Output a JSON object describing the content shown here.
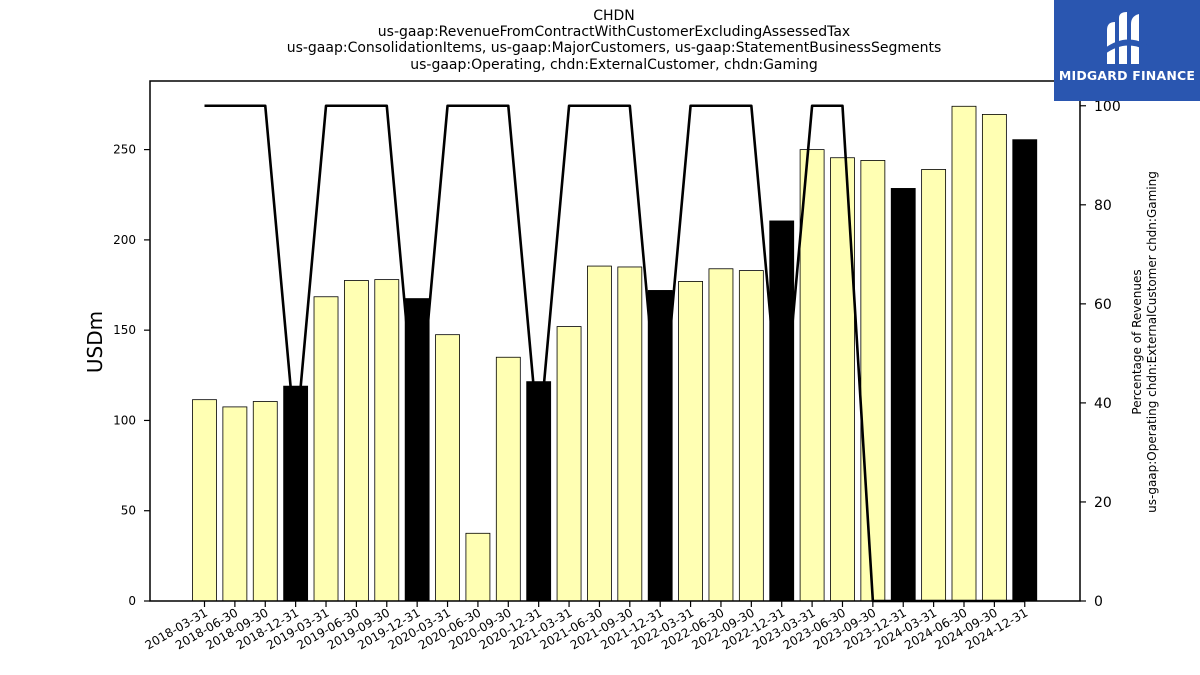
{
  "chart_data": {
    "type": "bar",
    "title_lines": [
      "CHDN",
      "us-gaap:RevenueFromContractWithCustomerExcludingAssessedTax",
      "us-gaap:ConsolidationItems, us-gaap:MajorCustomers, us-gaap:StatementBusinessSegments",
      "us-gaap:Operating, chdn:ExternalCustomer, chdn:Gaming"
    ],
    "categories": [
      "2018-03-31",
      "2018-06-30",
      "2018-09-30",
      "2018-12-31",
      "2019-03-31",
      "2019-06-30",
      "2019-09-30",
      "2019-12-31",
      "2020-03-31",
      "2020-06-30",
      "2020-09-30",
      "2020-12-31",
      "2021-03-31",
      "2021-06-30",
      "2021-09-30",
      "2021-12-31",
      "2022-03-31",
      "2022-06-30",
      "2022-09-30",
      "2022-12-31",
      "2023-03-31",
      "2023-06-30",
      "2023-09-30",
      "2023-12-31",
      "2024-03-31",
      "2024-06-30",
      "2024-09-30",
      "2024-12-31"
    ],
    "series": [
      {
        "axis": "left",
        "type": "bar",
        "values": [
          111.5,
          107.5,
          110.5,
          119,
          168.5,
          177.5,
          178,
          167.5,
          147.5,
          37.5,
          135,
          121.5,
          152,
          185.5,
          185,
          172,
          177,
          184,
          183,
          210.5,
          250,
          245.5,
          244,
          228.5,
          239,
          274,
          269.5,
          255.5
        ],
        "bar_colors": [
          "#ffffb3",
          "#ffffb3",
          "#ffffb3",
          "#000000",
          "#ffffb3",
          "#ffffb3",
          "#ffffb3",
          "#000000",
          "#ffffb3",
          "#ffffb3",
          "#ffffb3",
          "#000000",
          "#ffffb3",
          "#ffffb3",
          "#ffffb3",
          "#000000",
          "#ffffb3",
          "#ffffb3",
          "#ffffb3",
          "#000000",
          "#ffffb3",
          "#ffffb3",
          "#ffffb3",
          "#000000",
          "#ffffb3",
          "#ffffb3",
          "#ffffb3",
          "#000000"
        ]
      },
      {
        "axis": "right",
        "type": "line",
        "color": "#000000",
        "values": [
          100,
          100,
          100,
          32,
          100,
          100,
          100,
          32,
          100,
          100,
          100,
          32,
          100,
          100,
          100,
          32,
          100,
          100,
          100,
          32,
          100,
          100,
          0,
          0,
          0,
          0,
          0,
          0
        ]
      }
    ],
    "ylabel": "USDm",
    "y2label_lines": [
      "Percentage of Revenues",
      "us-gaap:Operating chdn:ExternalCustomer chdn:Gaming"
    ],
    "ylim": [
      0,
      288
    ],
    "y2lim": [
      0,
      105
    ],
    "yticks": [
      0,
      50,
      100,
      150,
      200,
      250
    ],
    "y2ticks": [
      0,
      20,
      40,
      60,
      80,
      100
    ],
    "grid": false,
    "legend": "none"
  },
  "logo": {
    "text": "MIDGARD FINANCE",
    "bg_color": "#2a56b0"
  }
}
